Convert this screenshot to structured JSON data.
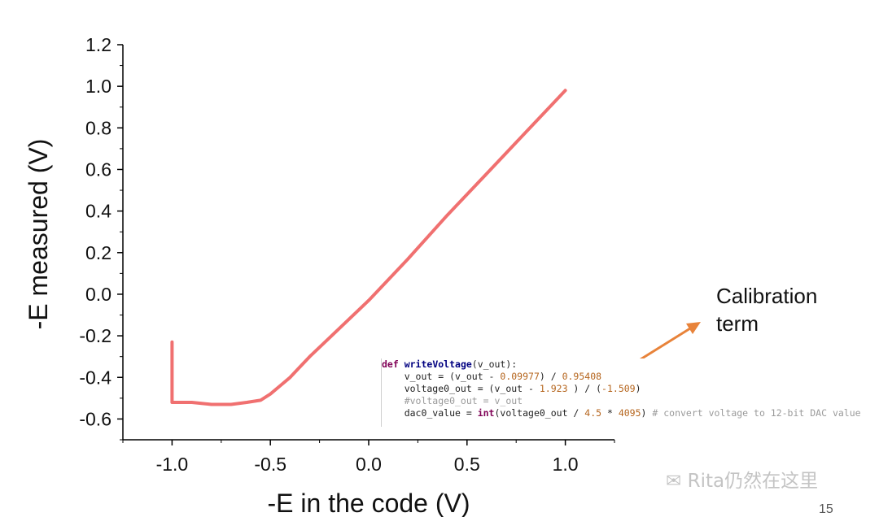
{
  "chart_data": {
    "type": "line",
    "xlabel": "-E in the code (V)",
    "ylabel": "-E measured (V)",
    "xlim": [
      -1.25,
      1.25
    ],
    "ylim": [
      -0.7,
      1.2
    ],
    "x_ticks": [
      -1.0,
      -0.5,
      0.0,
      0.5,
      1.0
    ],
    "x_tick_labels": [
      "-1.0",
      "-0.5",
      "0.0",
      "0.5",
      "1.0"
    ],
    "y_ticks": [
      1.2,
      1.0,
      0.8,
      0.6,
      0.4,
      0.2,
      0.0,
      -0.2,
      -0.4,
      -0.6
    ],
    "y_tick_labels": [
      "1.2",
      "1.0",
      "0.8",
      "0.6",
      "0.4",
      "0.2",
      "0.0",
      "-0.2",
      "-0.4",
      "-0.6"
    ],
    "grid": false,
    "line_color": "#f07070",
    "series": [
      {
        "x": [
          -1.0,
          -1.0,
          -1.0,
          -0.9,
          -0.8,
          -0.7,
          -0.62,
          -0.55,
          -0.5,
          -0.45,
          -0.4,
          -0.35,
          -0.3,
          -0.2,
          0.0,
          0.2,
          0.4,
          0.6,
          0.8,
          1.0
        ],
        "y": [
          -0.23,
          -0.4,
          -0.52,
          -0.52,
          -0.53,
          -0.53,
          -0.52,
          -0.51,
          -0.48,
          -0.44,
          -0.4,
          -0.35,
          -0.3,
          -0.21,
          -0.03,
          0.17,
          0.38,
          0.58,
          0.78,
          0.98
        ]
      }
    ]
  },
  "code_snippet": {
    "lines": [
      [
        {
          "t": "def ",
          "c": "kw"
        },
        {
          "t": "writeVoltage",
          "c": "fn"
        },
        {
          "t": "(v_out):",
          "c": ""
        }
      ],
      [
        {
          "t": "    v_out = (v_out - ",
          "c": ""
        },
        {
          "t": "0.09977",
          "c": "num"
        },
        {
          "t": ") / ",
          "c": ""
        },
        {
          "t": "0.95408",
          "c": "num"
        }
      ],
      [
        {
          "t": "    voltage0_out = (v_out - ",
          "c": ""
        },
        {
          "t": "1.923",
          "c": "num"
        },
        {
          "t": " ) / (",
          "c": ""
        },
        {
          "t": "-1.509",
          "c": "num"
        },
        {
          "t": ")",
          "c": ""
        }
      ],
      [
        {
          "t": "    #voltage0_out = v_out",
          "c": "cmt"
        }
      ],
      [
        {
          "t": "    dac0_value = ",
          "c": ""
        },
        {
          "t": "int",
          "c": "kw"
        },
        {
          "t": "(voltage0_out / ",
          "c": ""
        },
        {
          "t": "4.5",
          "c": "num"
        },
        {
          "t": " * ",
          "c": ""
        },
        {
          "t": "4095",
          "c": "num"
        },
        {
          "t": ") ",
          "c": ""
        },
        {
          "t": "# convert voltage to 12-bit DAC value",
          "c": "cmt"
        }
      ]
    ]
  },
  "callout": {
    "line1": "Calibration",
    "line2": "term",
    "arrow_color": "#e8833a"
  },
  "watermark": "Rita仍然在这里",
  "page_number": "15"
}
